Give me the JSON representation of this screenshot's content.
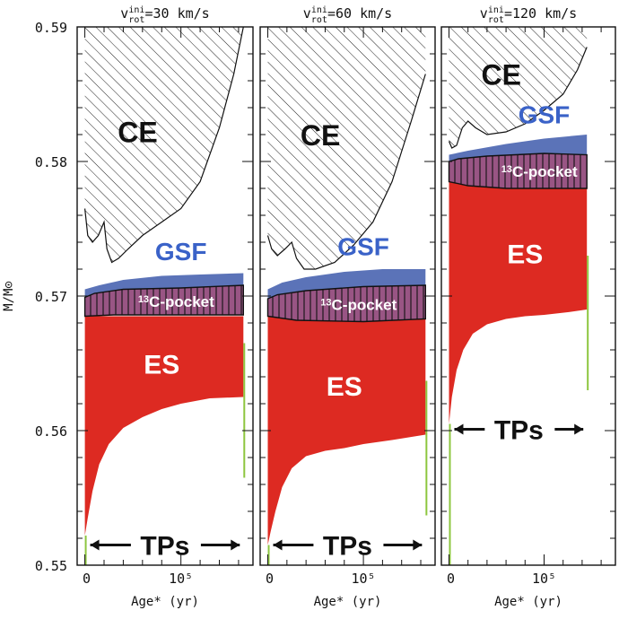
{
  "chart_data": {
    "type": "area",
    "ylabel": "M/M⊙",
    "ylim": [
      0.55,
      0.59
    ],
    "yticks": [
      {
        "value": 0.55,
        "label": "0.55"
      },
      {
        "value": 0.56,
        "label": "0.56"
      },
      {
        "value": 0.57,
        "label": "0.57"
      },
      {
        "value": 0.58,
        "label": "0.58"
      },
      {
        "value": 0.59,
        "label": "0.59"
      }
    ],
    "xlim": [
      -8000,
      175000
    ],
    "xticks": [
      {
        "value": 0,
        "label": "0"
      },
      {
        "value": 100000,
        "label": "10⁵"
      }
    ],
    "colors": {
      "ES": "#dd2a22",
      "GSF": "#5b73b8",
      "GSF_label": "#3a62c8",
      "pocket_mix": "#a4507a",
      "TP_line": "#8dc63f",
      "hatch": "#222222"
    },
    "panels": [
      {
        "title": "v_rot^ini=30 km/s",
        "title_main": "v",
        "title_sup": "ini",
        "title_sub": "rot",
        "title_rest": "=30 km/s",
        "xlabel": "Age* (yr)",
        "tp_start": 0,
        "tp_end": 165000,
        "labels": {
          "CE": "CE",
          "GSF": "GSF",
          "pocket_sup": "13",
          "pocket_rest": "C-pocket",
          "ES": "ES",
          "TPs": "TPs"
        },
        "ce_bottom": [
          [
            0,
            0.5765
          ],
          [
            3000,
            0.5745
          ],
          [
            8000,
            0.574
          ],
          [
            14000,
            0.5745
          ],
          [
            20000,
            0.5755
          ],
          [
            23000,
            0.5735
          ],
          [
            28000,
            0.5725
          ],
          [
            35000,
            0.5728
          ],
          [
            45000,
            0.5735
          ],
          [
            60000,
            0.5745
          ],
          [
            80000,
            0.5755
          ],
          [
            100000,
            0.5765
          ],
          [
            120000,
            0.5785
          ],
          [
            140000,
            0.5825
          ],
          [
            155000,
            0.5865
          ],
          [
            165000,
            0.59
          ]
        ],
        "gsf_top": [
          [
            0,
            0.5705
          ],
          [
            15000,
            0.5708
          ],
          [
            40000,
            0.5712
          ],
          [
            80000,
            0.5715
          ],
          [
            120000,
            0.5716
          ],
          [
            165000,
            0.5717
          ]
        ],
        "pocket_top": [
          [
            0,
            0.5699
          ],
          [
            10000,
            0.5702
          ],
          [
            40000,
            0.5705
          ],
          [
            100000,
            0.5706
          ],
          [
            165000,
            0.5708
          ]
        ],
        "pocket_bottom": [
          [
            0,
            0.5685
          ],
          [
            30000,
            0.5686
          ],
          [
            100000,
            0.5686
          ],
          [
            165000,
            0.5686
          ]
        ],
        "es_top": [
          [
            0,
            0.5685
          ],
          [
            165000,
            0.5685
          ]
        ],
        "es_bottom": [
          [
            0,
            0.5522
          ],
          [
            3000,
            0.5535
          ],
          [
            8000,
            0.5555
          ],
          [
            15000,
            0.5575
          ],
          [
            25000,
            0.559
          ],
          [
            40000,
            0.5602
          ],
          [
            60000,
            0.561
          ],
          [
            80000,
            0.5616
          ],
          [
            100000,
            0.562
          ],
          [
            130000,
            0.5624
          ],
          [
            165000,
            0.5625
          ]
        ]
      },
      {
        "title": "v_rot^ini=60 km/s",
        "title_main": "v",
        "title_sup": "ini",
        "title_sub": "rot",
        "title_rest": "=60 km/s",
        "xlabel": "Age* (yr)",
        "tp_start": 0,
        "tp_end": 165000,
        "labels": {
          "CE": "CE",
          "GSF": "GSF",
          "pocket_sup": "13",
          "pocket_rest": "C-pocket",
          "ES": "ES",
          "TPs": "TPs"
        },
        "ce_bottom": [
          [
            0,
            0.5745
          ],
          [
            4000,
            0.5735
          ],
          [
            10000,
            0.573
          ],
          [
            18000,
            0.5735
          ],
          [
            25000,
            0.574
          ],
          [
            30000,
            0.5728
          ],
          [
            38000,
            0.572
          ],
          [
            50000,
            0.572
          ],
          [
            70000,
            0.5725
          ],
          [
            90000,
            0.5738
          ],
          [
            110000,
            0.5755
          ],
          [
            130000,
            0.5785
          ],
          [
            150000,
            0.583
          ],
          [
            165000,
            0.5865
          ]
        ],
        "gsf_top": [
          [
            0,
            0.5705
          ],
          [
            15000,
            0.571
          ],
          [
            40000,
            0.5714
          ],
          [
            80000,
            0.5718
          ],
          [
            120000,
            0.572
          ],
          [
            165000,
            0.572
          ]
        ],
        "pocket_top": [
          [
            0,
            0.5698
          ],
          [
            10000,
            0.5701
          ],
          [
            40000,
            0.5704
          ],
          [
            100000,
            0.5707
          ],
          [
            165000,
            0.5708
          ]
        ],
        "pocket_bottom": [
          [
            0,
            0.5685
          ],
          [
            30000,
            0.5682
          ],
          [
            100000,
            0.5681
          ],
          [
            165000,
            0.5683
          ]
        ],
        "es_top": [
          [
            0,
            0.5685
          ],
          [
            30000,
            0.5682
          ],
          [
            100000,
            0.5681
          ],
          [
            165000,
            0.5683
          ]
        ],
        "es_bottom": [
          [
            0,
            0.5515
          ],
          [
            3000,
            0.5525
          ],
          [
            8000,
            0.554
          ],
          [
            15000,
            0.5558
          ],
          [
            25000,
            0.5572
          ],
          [
            40000,
            0.5581
          ],
          [
            60000,
            0.5585
          ],
          [
            80000,
            0.5587
          ],
          [
            100000,
            0.559
          ],
          [
            130000,
            0.5593
          ],
          [
            165000,
            0.5597
          ]
        ]
      },
      {
        "title": "v_rot^ini=120 km/s",
        "title_main": "v",
        "title_sup": "ini",
        "title_sub": "rot",
        "title_rest": "=120 km/s",
        "xlabel": "Age* (yr)",
        "tp_start": 0,
        "tp_end": 145000,
        "labels": {
          "CE": "CE",
          "GSF": "GSF",
          "pocket_sup": "13",
          "pocket_rest": "C-pocket",
          "ES": "ES",
          "TPs": "TPs"
        },
        "ce_bottom": [
          [
            0,
            0.5815
          ],
          [
            3000,
            0.581
          ],
          [
            8000,
            0.5812
          ],
          [
            14000,
            0.5825
          ],
          [
            20000,
            0.583
          ],
          [
            28000,
            0.5825
          ],
          [
            40000,
            0.582
          ],
          [
            60000,
            0.5822
          ],
          [
            80000,
            0.5828
          ],
          [
            100000,
            0.5838
          ],
          [
            120000,
            0.585
          ],
          [
            135000,
            0.5868
          ],
          [
            145000,
            0.5885
          ]
        ],
        "gsf_top": [
          [
            0,
            0.5805
          ],
          [
            20000,
            0.5808
          ],
          [
            60000,
            0.5813
          ],
          [
            100000,
            0.5817
          ],
          [
            145000,
            0.582
          ]
        ],
        "pocket_top": [
          [
            0,
            0.58
          ],
          [
            10000,
            0.5802
          ],
          [
            40000,
            0.5804
          ],
          [
            100000,
            0.5806
          ],
          [
            145000,
            0.5805
          ]
        ],
        "pocket_bottom": [
          [
            0,
            0.5785
          ],
          [
            20000,
            0.5782
          ],
          [
            60000,
            0.578
          ],
          [
            100000,
            0.578
          ],
          [
            145000,
            0.578
          ]
        ],
        "es_top": [
          [
            0,
            0.5785
          ],
          [
            20000,
            0.5782
          ],
          [
            60000,
            0.578
          ],
          [
            100000,
            0.578
          ],
          [
            145000,
            0.578
          ]
        ],
        "es_bottom": [
          [
            0,
            0.5605
          ],
          [
            3000,
            0.5625
          ],
          [
            8000,
            0.5645
          ],
          [
            15000,
            0.566
          ],
          [
            25000,
            0.5672
          ],
          [
            40000,
            0.5679
          ],
          [
            60000,
            0.5683
          ],
          [
            80000,
            0.5685
          ],
          [
            100000,
            0.5686
          ],
          [
            125000,
            0.5688
          ],
          [
            145000,
            0.569
          ]
        ]
      }
    ]
  }
}
